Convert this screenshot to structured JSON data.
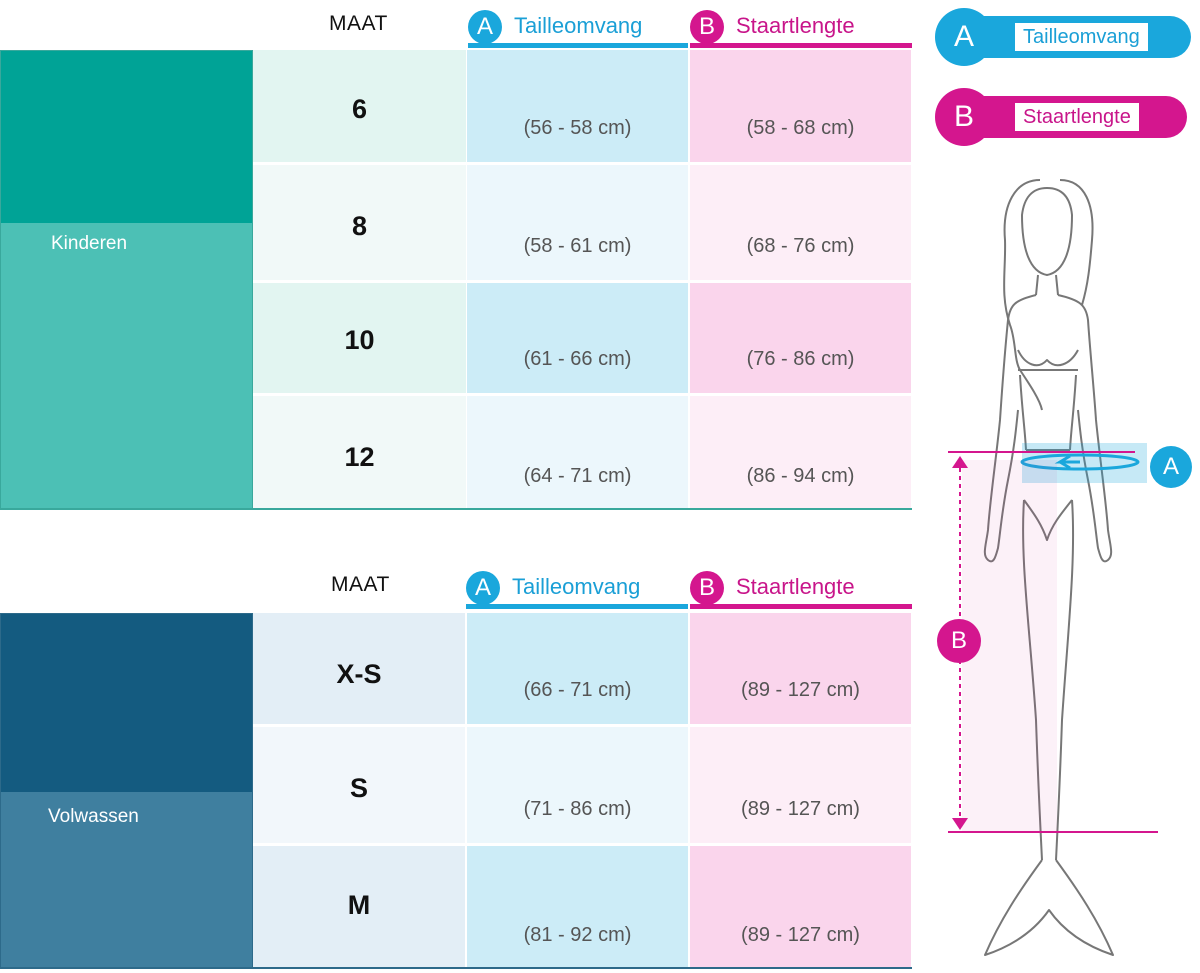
{
  "kinderen": {
    "maat_label": "MAAT",
    "group_label": "Kinderen",
    "header_a": {
      "letter": "A",
      "label": "Tailleomvang"
    },
    "header_b": {
      "letter": "B",
      "label": "Staartlengte"
    },
    "rows": [
      {
        "size": "6",
        "waist": "(56 - 58 cm)",
        "tail": "(58 - 68 cm)"
      },
      {
        "size": "8",
        "waist": "(58 - 61 cm)",
        "tail": "(68 - 76 cm)"
      },
      {
        "size": "10",
        "waist": "(61 - 66 cm)",
        "tail": "(76 - 86 cm)"
      },
      {
        "size": "12",
        "waist": "(64 - 71 cm)",
        "tail": "(86 - 94 cm)"
      }
    ]
  },
  "volwassen": {
    "maat_label": "MAAT",
    "group_label": "Volwassen",
    "header_a": {
      "letter": "A",
      "label": "Tailleomvang"
    },
    "header_b": {
      "letter": "B",
      "label": "Staartlengte"
    },
    "rows": [
      {
        "size": "X-S",
        "waist": "(66 - 71 cm)",
        "tail": "(89 - 127 cm)"
      },
      {
        "size": "S",
        "waist": "(71 - 86 cm)",
        "tail": "(89 - 127 cm)"
      },
      {
        "size": "M",
        "waist": "(81 - 92 cm)",
        "tail": "(89 - 127 cm)"
      }
    ]
  },
  "legend": {
    "a": {
      "letter": "A",
      "label": "Tailleomvang"
    },
    "b": {
      "letter": "B",
      "label": "Staartlengte"
    }
  },
  "figure": {
    "marker_a": "A",
    "marker_b": "B",
    "icon": "mermaid-figure-icon"
  },
  "colors": {
    "accent_a": "#1aa7dc",
    "accent_b": "#d4168e",
    "kids_dark": "#00a396",
    "kids_light": "#4cc0b5",
    "adult_dark": "#145b80",
    "adult_light": "#3f7f9f"
  }
}
